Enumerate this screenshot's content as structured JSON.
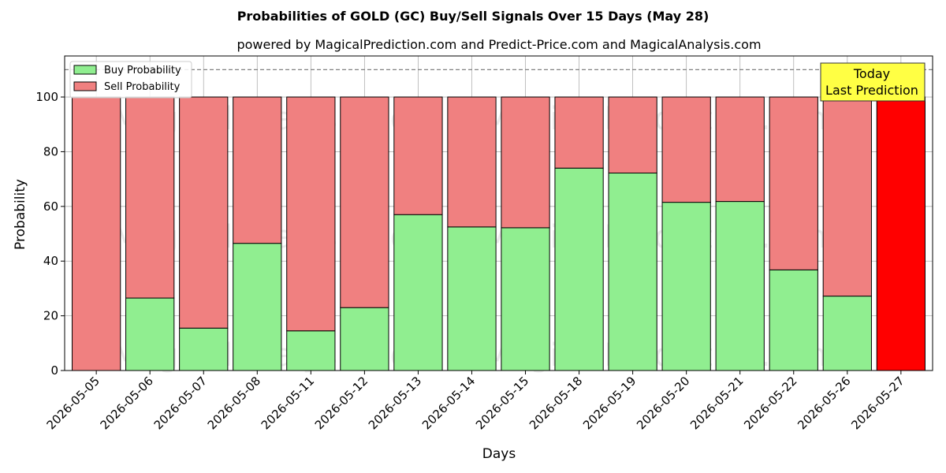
{
  "chart_data": {
    "type": "bar",
    "stacked": true,
    "title": "Probabilities of GOLD (GC) Buy/Sell Signals Over 15 Days (May 28)",
    "subtitle": "powered by MagicalPrediction.com and Predict-Price.com and MagicalAnalysis.com",
    "xlabel": "Days",
    "ylabel": "Probability",
    "ylim": [
      0,
      115
    ],
    "yticks": [
      0,
      20,
      40,
      60,
      80,
      100
    ],
    "grid": true,
    "legend_position": "top-left",
    "reference_line": 110,
    "categories": [
      "2026-05-05",
      "2026-05-06",
      "2026-05-07",
      "2026-05-08",
      "2026-05-11",
      "2026-05-12",
      "2026-05-13",
      "2026-05-14",
      "2026-05-15",
      "2026-05-18",
      "2026-05-19",
      "2026-05-20",
      "2026-05-21",
      "2026-05-22",
      "2026-05-26",
      "2026-05-27"
    ],
    "series": [
      {
        "name": "Buy Probability",
        "color": "#90ee90",
        "values": [
          0,
          26.5,
          15.5,
          46.5,
          14.5,
          23,
          57,
          52.5,
          52.2,
          74,
          72.2,
          61.5,
          61.8,
          36.8,
          27.2,
          0
        ]
      },
      {
        "name": "Sell Probability",
        "color": "#f08080",
        "values": [
          100,
          73.5,
          84.5,
          53.5,
          85.5,
          77,
          43,
          47.5,
          47.8,
          26,
          27.8,
          38.5,
          38.2,
          63.2,
          72.8,
          100
        ]
      }
    ],
    "highlight": {
      "index": 15,
      "color": "#ff0000"
    },
    "annotation": {
      "lines": [
        "Today",
        "Last Prediction"
      ],
      "background": "#ffff44"
    },
    "watermarks": [
      "MagicalAnalysis.com",
      "MagicalPrediction.com"
    ]
  }
}
